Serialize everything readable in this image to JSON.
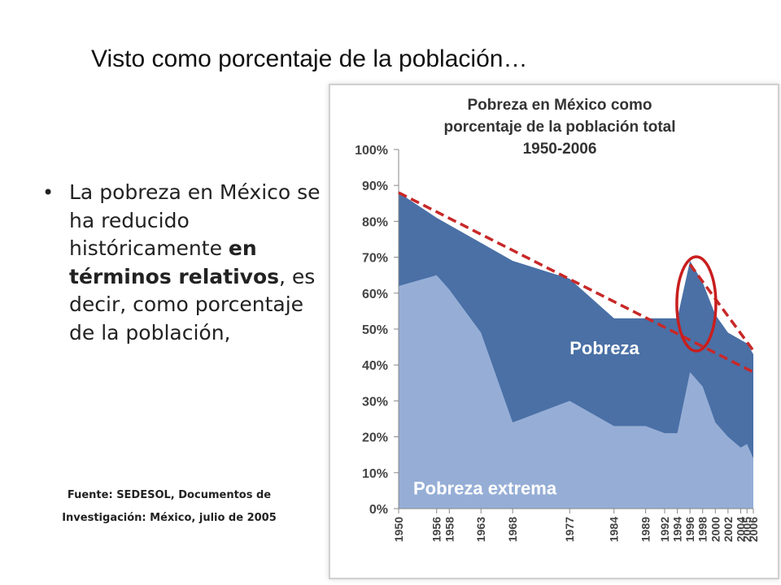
{
  "slide": {
    "title": "Visto como porcentaje de la población…",
    "bullet_normal_1": "La pobreza en México se ha reducido históricamente ",
    "bullet_bold": "en términos relativos",
    "bullet_normal_2": ", es decir, como porcentaje de la población,",
    "source_line1": "Fuente: SEDESOL, Documentos de",
    "source_line2": "Investigación: México, julio de 2005"
  },
  "colors": {
    "pobreza": "#4a70a6",
    "pobreza_extrema": "#96aed6",
    "trend": "#c82828",
    "circle": "#c81e1e"
  },
  "chart_data": {
    "type": "area",
    "title": [
      "Pobreza en México como",
      "porcentaje de la población total",
      "1950-2006"
    ],
    "ylim": [
      0,
      100
    ],
    "yticks": [
      "0%",
      "10%",
      "20%",
      "30%",
      "40%",
      "50%",
      "60%",
      "70%",
      "80%",
      "90%",
      "100%"
    ],
    "x_tick_labels": [
      "1950",
      "1956",
      "1958",
      "1963",
      "1968",
      "1977",
      "1984",
      "1989",
      "1992",
      "1994",
      "1996",
      "1998",
      "2000",
      "2002",
      "2004",
      "2005",
      "2006"
    ],
    "series": [
      {
        "name": "Pobreza",
        "x": [
          1950,
          1956,
          1958,
          1963,
          1968,
          1977,
          1984,
          1989,
          1992,
          1994,
          1996,
          1998,
          2000,
          2002,
          2004,
          2005,
          2006
        ],
        "values": [
          88,
          81,
          79,
          74,
          69,
          64,
          53,
          53,
          53,
          53,
          69,
          63,
          54,
          49,
          47,
          46,
          43
        ]
      },
      {
        "name": "Pobreza extrema",
        "x": [
          1950,
          1956,
          1958,
          1963,
          1968,
          1977,
          1984,
          1989,
          1992,
          1994,
          1996,
          1998,
          2000,
          2002,
          2004,
          2005,
          2006
        ],
        "values": [
          62,
          65,
          61,
          49,
          24,
          30,
          23,
          23,
          21,
          21,
          38,
          34,
          24,
          20,
          17,
          18,
          14
        ]
      }
    ],
    "trend_lines": [
      {
        "from": [
          1950,
          88
        ],
        "to": [
          2006,
          38
        ]
      },
      {
        "from": [
          1996,
          68
        ],
        "to": [
          2006,
          44
        ]
      }
    ],
    "annotation_circle": {
      "x": 1997,
      "y": 57
    },
    "grid": false
  }
}
